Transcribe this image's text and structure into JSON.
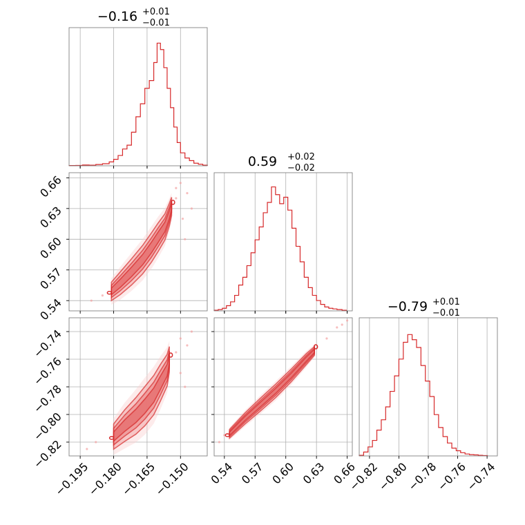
{
  "chart_data": {
    "type": "corner",
    "color": "#d62728",
    "grid": true,
    "panels": [
      {
        "id": "hist-p1",
        "kind": "histogram",
        "title": {
          "median": "−0.16",
          "plus": "+0.01",
          "minus": "−0.01"
        },
        "xlim": [
          -0.2,
          -0.138
        ],
        "ticks": [
          -0.195,
          -0.18,
          -0.165,
          -0.15
        ],
        "bins": [
          [
            -0.2,
            0.002
          ],
          [
            -0.197,
            0.003
          ],
          [
            -0.194,
            0.006
          ],
          [
            -0.191,
            0.005
          ],
          [
            -0.188,
            0.01
          ],
          [
            -0.185,
            0.016
          ],
          [
            -0.182,
            0.03
          ],
          [
            -0.18,
            0.05
          ],
          [
            -0.178,
            0.08
          ],
          [
            -0.176,
            0.13
          ],
          [
            -0.174,
            0.16
          ],
          [
            -0.172,
            0.26
          ],
          [
            -0.17,
            0.38
          ],
          [
            -0.168,
            0.48
          ],
          [
            -0.166,
            0.6
          ],
          [
            -0.164,
            0.66
          ],
          [
            -0.162,
            0.8
          ],
          [
            -0.1605,
            0.95
          ],
          [
            -0.159,
            0.9
          ],
          [
            -0.1575,
            0.76
          ],
          [
            -0.156,
            0.6
          ],
          [
            -0.1545,
            0.45
          ],
          [
            -0.153,
            0.3
          ],
          [
            -0.1515,
            0.18
          ],
          [
            -0.15,
            0.1
          ],
          [
            -0.148,
            0.06
          ],
          [
            -0.146,
            0.04
          ],
          [
            -0.144,
            0.02
          ],
          [
            -0.142,
            0.012
          ],
          [
            -0.14,
            0.005
          ]
        ]
      },
      {
        "id": "hist-p2",
        "kind": "histogram",
        "title": {
          "median": "0.59",
          "plus": "+0.02",
          "minus": "−0.02"
        },
        "xlim": [
          0.53,
          0.665
        ],
        "ticks": [
          0.54,
          0.57,
          0.6,
          0.63,
          0.66
        ],
        "bins": [
          [
            0.53,
            0.005
          ],
          [
            0.534,
            0.01
          ],
          [
            0.538,
            0.02
          ],
          [
            0.542,
            0.04
          ],
          [
            0.546,
            0.07
          ],
          [
            0.55,
            0.12
          ],
          [
            0.554,
            0.2
          ],
          [
            0.558,
            0.26
          ],
          [
            0.562,
            0.35
          ],
          [
            0.566,
            0.45
          ],
          [
            0.57,
            0.55
          ],
          [
            0.574,
            0.65
          ],
          [
            0.578,
            0.76
          ],
          [
            0.582,
            0.84
          ],
          [
            0.586,
            0.96
          ],
          [
            0.59,
            0.9
          ],
          [
            0.594,
            0.83
          ],
          [
            0.598,
            0.88
          ],
          [
            0.602,
            0.78
          ],
          [
            0.606,
            0.64
          ],
          [
            0.61,
            0.5
          ],
          [
            0.614,
            0.38
          ],
          [
            0.618,
            0.26
          ],
          [
            0.622,
            0.18
          ],
          [
            0.626,
            0.12
          ],
          [
            0.63,
            0.08
          ],
          [
            0.634,
            0.05
          ],
          [
            0.638,
            0.03
          ],
          [
            0.642,
            0.02
          ],
          [
            0.646,
            0.015
          ],
          [
            0.65,
            0.01
          ],
          [
            0.655,
            0.005
          ]
        ]
      },
      {
        "id": "hist-p3",
        "kind": "histogram",
        "title": {
          "median": "−0.79",
          "plus": "+0.01",
          "minus": "−0.01"
        },
        "xlim": [
          -0.827,
          -0.733
        ],
        "ticks": [
          -0.82,
          -0.8,
          -0.78,
          -0.76,
          -0.74
        ],
        "bins": [
          [
            -0.827,
            0.005
          ],
          [
            -0.824,
            0.03
          ],
          [
            -0.821,
            0.07
          ],
          [
            -0.818,
            0.12
          ],
          [
            -0.815,
            0.2
          ],
          [
            -0.812,
            0.28
          ],
          [
            -0.809,
            0.38
          ],
          [
            -0.806,
            0.5
          ],
          [
            -0.803,
            0.62
          ],
          [
            -0.8,
            0.75
          ],
          [
            -0.797,
            0.88
          ],
          [
            -0.794,
            0.94
          ],
          [
            -0.791,
            0.9
          ],
          [
            -0.788,
            0.84
          ],
          [
            -0.785,
            0.7
          ],
          [
            -0.782,
            0.58
          ],
          [
            -0.779,
            0.46
          ],
          [
            -0.776,
            0.32
          ],
          [
            -0.773,
            0.22
          ],
          [
            -0.77,
            0.15
          ],
          [
            -0.767,
            0.1
          ],
          [
            -0.764,
            0.06
          ],
          [
            -0.761,
            0.04
          ],
          [
            -0.758,
            0.025
          ],
          [
            -0.755,
            0.015
          ],
          [
            -0.752,
            0.01
          ],
          [
            -0.749,
            0.008
          ],
          [
            -0.746,
            0.005
          ],
          [
            -0.743,
            0.003
          ]
        ]
      },
      {
        "id": "joint-p1-p2",
        "kind": "contour",
        "xlim": [
          -0.2,
          -0.138
        ],
        "ylim": [
          0.53,
          0.665
        ],
        "xticks": [
          -0.195,
          -0.18,
          -0.165,
          -0.15
        ],
        "yticks": [
          0.54,
          0.57,
          0.6,
          0.63,
          0.66
        ],
        "ridge": [
          [
            -0.181,
            0.549
          ],
          [
            -0.177,
            0.557
          ],
          [
            -0.172,
            0.568
          ],
          [
            -0.167,
            0.58
          ],
          [
            -0.163,
            0.592
          ],
          [
            -0.16,
            0.602
          ],
          [
            -0.157,
            0.612
          ],
          [
            -0.155,
            0.624
          ],
          [
            -0.154,
            0.632
          ]
        ],
        "halfwidth": 0.0065,
        "outliers": [
          [
            -0.185,
            0.545
          ],
          [
            -0.19,
            0.54
          ],
          [
            -0.15,
            0.655
          ],
          [
            -0.147,
            0.645
          ],
          [
            -0.152,
            0.64
          ],
          [
            -0.149,
            0.62
          ],
          [
            -0.145,
            0.63
          ],
          [
            -0.148,
            0.6
          ],
          [
            -0.152,
            0.65
          ]
        ]
      },
      {
        "id": "joint-p1-p3",
        "kind": "contour",
        "xlim": [
          -0.2,
          -0.138
        ],
        "ylim": [
          -0.83,
          -0.73
        ],
        "xticks": [
          -0.195,
          -0.18,
          -0.165,
          -0.15
        ],
        "yticks": [
          -0.82,
          -0.8,
          -0.78,
          -0.76,
          -0.74
        ],
        "ridge": [
          [
            -0.18,
            -0.816
          ],
          [
            -0.175,
            -0.808
          ],
          [
            -0.17,
            -0.801
          ],
          [
            -0.166,
            -0.794
          ],
          [
            -0.162,
            -0.786
          ],
          [
            -0.159,
            -0.777
          ],
          [
            -0.156,
            -0.768
          ],
          [
            -0.155,
            -0.76
          ]
        ],
        "halfwidth": 0.0065,
        "outliers": [
          [
            -0.188,
            -0.82
          ],
          [
            -0.192,
            -0.825
          ],
          [
            -0.15,
            -0.745
          ],
          [
            -0.147,
            -0.75
          ],
          [
            -0.152,
            -0.755
          ],
          [
            -0.148,
            -0.78
          ],
          [
            -0.145,
            -0.74
          ],
          [
            -0.15,
            -0.77
          ]
        ]
      },
      {
        "id": "joint-p2-p3",
        "kind": "contour",
        "xlim": [
          0.53,
          0.665
        ],
        "ylim": [
          -0.83,
          -0.73
        ],
        "xticks": [
          0.54,
          0.57,
          0.6,
          0.63,
          0.66
        ],
        "yticks": [
          -0.82,
          -0.8,
          -0.78,
          -0.76,
          -0.74
        ],
        "ridge": [
          [
            0.545,
            -0.814
          ],
          [
            0.56,
            -0.803
          ],
          [
            0.575,
            -0.793
          ],
          [
            0.59,
            -0.783
          ],
          [
            0.605,
            -0.772
          ],
          [
            0.62,
            -0.76
          ],
          [
            0.628,
            -0.754
          ]
        ],
        "halfwidth": 0.0022,
        "outliers": [
          [
            0.535,
            -0.82
          ],
          [
            0.54,
            -0.815
          ],
          [
            0.64,
            -0.745
          ],
          [
            0.65,
            -0.737
          ],
          [
            0.66,
            -0.732
          ],
          [
            0.655,
            -0.735
          ]
        ]
      }
    ],
    "tick_labels": {
      "x_col1": [
        "−0.195",
        "−0.180",
        "−0.165",
        "−0.150"
      ],
      "x_col2": [
        "0.54",
        "0.57",
        "0.60",
        "0.63",
        "0.66"
      ],
      "x_col3": [
        "−0.82",
        "−0.80",
        "−0.78",
        "−0.76",
        "−0.74"
      ],
      "y_row2": [
        "0.54",
        "0.57",
        "0.60",
        "0.63",
        "0.66"
      ],
      "y_row3": [
        "−0.82",
        "−0.80",
        "−0.78",
        "−0.76",
        "−0.74"
      ]
    }
  }
}
